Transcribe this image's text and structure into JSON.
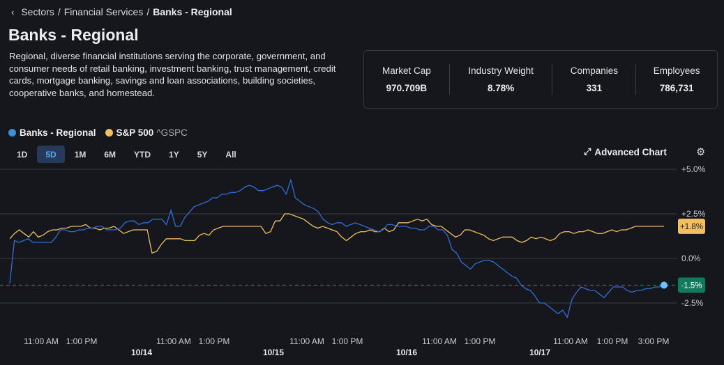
{
  "breadcrumb": {
    "back_icon": "chevron-left-icon",
    "items": [
      "Sectors",
      "Financial Services"
    ],
    "separator": "/",
    "current": "Banks - Regional"
  },
  "page_title": "Banks - Regional",
  "description": "Regional, diverse financial institutions serving the corporate, government, and consumer needs of retail banking, investment banking, trust management, credit cards, mortgage banking, savings and loan associations, building societies, cooperative banks, and homestead.",
  "stats": [
    {
      "label": "Market Cap",
      "value": "970.709B"
    },
    {
      "label": "Industry Weight",
      "value": "8.78%"
    },
    {
      "label": "Companies",
      "value": "331"
    },
    {
      "label": "Employees",
      "value": "786,731"
    }
  ],
  "legend": [
    {
      "name": "Banks - Regional",
      "ticker": "",
      "color": "#3b8fd6"
    },
    {
      "name": "S&P 500",
      "ticker": "^GSPC",
      "color": "#f2be62"
    }
  ],
  "ranges": [
    "1D",
    "5D",
    "1M",
    "6M",
    "YTD",
    "1Y",
    "5Y",
    "All"
  ],
  "active_range": "5D",
  "advanced_chart_label": "Advanced Chart",
  "advanced_chart_icon": "expand-icon",
  "settings_icon": "gear-icon",
  "chart_data": {
    "type": "line",
    "title": "",
    "xlabel": "",
    "ylabel": "",
    "ylim": [
      -3.6,
      5.2
    ],
    "y_ticks": [
      "+5.0%",
      "+2.5%",
      "0.0%",
      "-2.5%"
    ],
    "y_tick_values": [
      5.0,
      2.5,
      0.0,
      -2.5
    ],
    "x_time_labels": [
      "11:00 AM",
      "1:00 PM",
      "11:00 AM",
      "1:00 PM",
      "11:00 AM",
      "1:00 PM",
      "11:00 AM",
      "1:00 PM",
      "11:00 AM",
      "1:00 PM",
      "3:00 PM"
    ],
    "x_date_labels": [
      "10/14",
      "10/15",
      "10/16",
      "10/17"
    ],
    "grid": true,
    "legend_position": "top-left",
    "reference_line": {
      "value": -1.5,
      "style": "dashed",
      "color": "#1f8a6c"
    },
    "series": [
      {
        "name": "Banks - Regional",
        "color": "#2f6fd6",
        "last_label": "-1.5%",
        "label_bg": "#0f7a5c",
        "values": [
          -1.4,
          1.0,
          0.9,
          1.0,
          1.1,
          0.9,
          0.9,
          0.9,
          0.9,
          0.9,
          1.2,
          1.6,
          1.6,
          1.5,
          1.5,
          1.6,
          1.6,
          1.7,
          1.7,
          1.8,
          1.8,
          1.6,
          1.6,
          1.6,
          1.7,
          2.0,
          2.1,
          2.1,
          1.9,
          2.0,
          2.0,
          2.2,
          2.2,
          2.2,
          1.9,
          2.7,
          1.8,
          1.8,
          2.3,
          2.6,
          2.9,
          3.0,
          3.1,
          3.2,
          3.4,
          3.4,
          3.6,
          3.6,
          3.7,
          3.7,
          3.8,
          4.0,
          4.1,
          4.0,
          3.8,
          3.8,
          3.9,
          4.0,
          4.1,
          4.0,
          3.6,
          4.4,
          3.4,
          3.2,
          3.0,
          2.9,
          2.8,
          2.6,
          2.2,
          2.0,
          1.9,
          2.0,
          2.0,
          1.8,
          1.9,
          2.0,
          1.9,
          1.8,
          1.7,
          1.6,
          1.5,
          1.6,
          1.9,
          1.9,
          1.8,
          1.8,
          1.8,
          1.7,
          1.7,
          1.6,
          1.6,
          1.8,
          1.8,
          1.6,
          1.6,
          1.3,
          0.5,
          0.3,
          -0.2,
          -0.4,
          -0.6,
          -0.3,
          -0.2,
          -0.1,
          -0.1,
          -0.2,
          -0.4,
          -0.6,
          -0.8,
          -1.0,
          -1.1,
          -1.5,
          -1.7,
          -1.8,
          -2.1,
          -2.5,
          -2.5,
          -2.7,
          -2.9,
          -3.1,
          -2.9,
          -3.3,
          -2.3,
          -1.9,
          -1.6,
          -1.7,
          -1.8,
          -1.8,
          -2.0,
          -2.2,
          -1.9,
          -1.6,
          -1.6,
          -1.6,
          -1.8,
          -1.9,
          -1.8,
          -1.8,
          -1.7,
          -1.7,
          -1.6,
          -1.6,
          -1.5
        ]
      },
      {
        "name": "S&P 500",
        "color": "#f2be62",
        "last_label": "+1.8%",
        "label_bg": "#f2be62",
        "values": [
          1.1,
          1.4,
          1.6,
          1.4,
          1.2,
          1.5,
          1.2,
          1.3,
          1.5,
          1.6,
          1.6,
          1.7,
          1.7,
          1.8,
          1.8,
          1.8,
          1.9,
          1.7,
          1.7,
          1.6,
          1.7,
          1.7,
          1.8,
          1.6,
          1.4,
          1.5,
          1.6,
          1.6,
          1.6,
          1.6,
          0.3,
          0.4,
          0.8,
          1.1,
          1.1,
          1.1,
          1.1,
          1.0,
          1.0,
          1.0,
          1.3,
          1.4,
          1.3,
          1.6,
          1.7,
          1.8,
          1.8,
          1.8,
          1.8,
          1.8,
          1.8,
          1.8,
          1.8,
          1.8,
          1.4,
          1.5,
          2.1,
          2.1,
          2.5,
          2.5,
          2.4,
          2.3,
          2.2,
          2.0,
          1.8,
          1.7,
          1.8,
          1.7,
          1.6,
          1.5,
          1.2,
          1.0,
          1.2,
          1.4,
          1.5,
          1.5,
          1.6,
          1.5,
          1.5,
          1.7,
          1.5,
          1.6,
          2.0,
          2.0,
          2.0,
          2.1,
          2.2,
          2.1,
          2.2,
          1.9,
          1.8,
          1.8,
          1.6,
          1.4,
          1.2,
          1.3,
          1.6,
          1.6,
          1.5,
          1.4,
          1.3,
          1.1,
          1.0,
          1.1,
          1.2,
          1.2,
          1.2,
          1.0,
          0.9,
          1.0,
          1.2,
          1.1,
          1.2,
          1.1,
          1.0,
          1.1,
          1.4,
          1.5,
          1.5,
          1.4,
          1.5,
          1.5,
          1.6,
          1.5,
          1.4,
          1.4,
          1.5,
          1.6,
          1.5,
          1.6,
          1.6,
          1.7,
          1.8,
          1.8,
          1.8,
          1.8,
          1.8,
          1.8,
          1.8
        ]
      }
    ]
  }
}
